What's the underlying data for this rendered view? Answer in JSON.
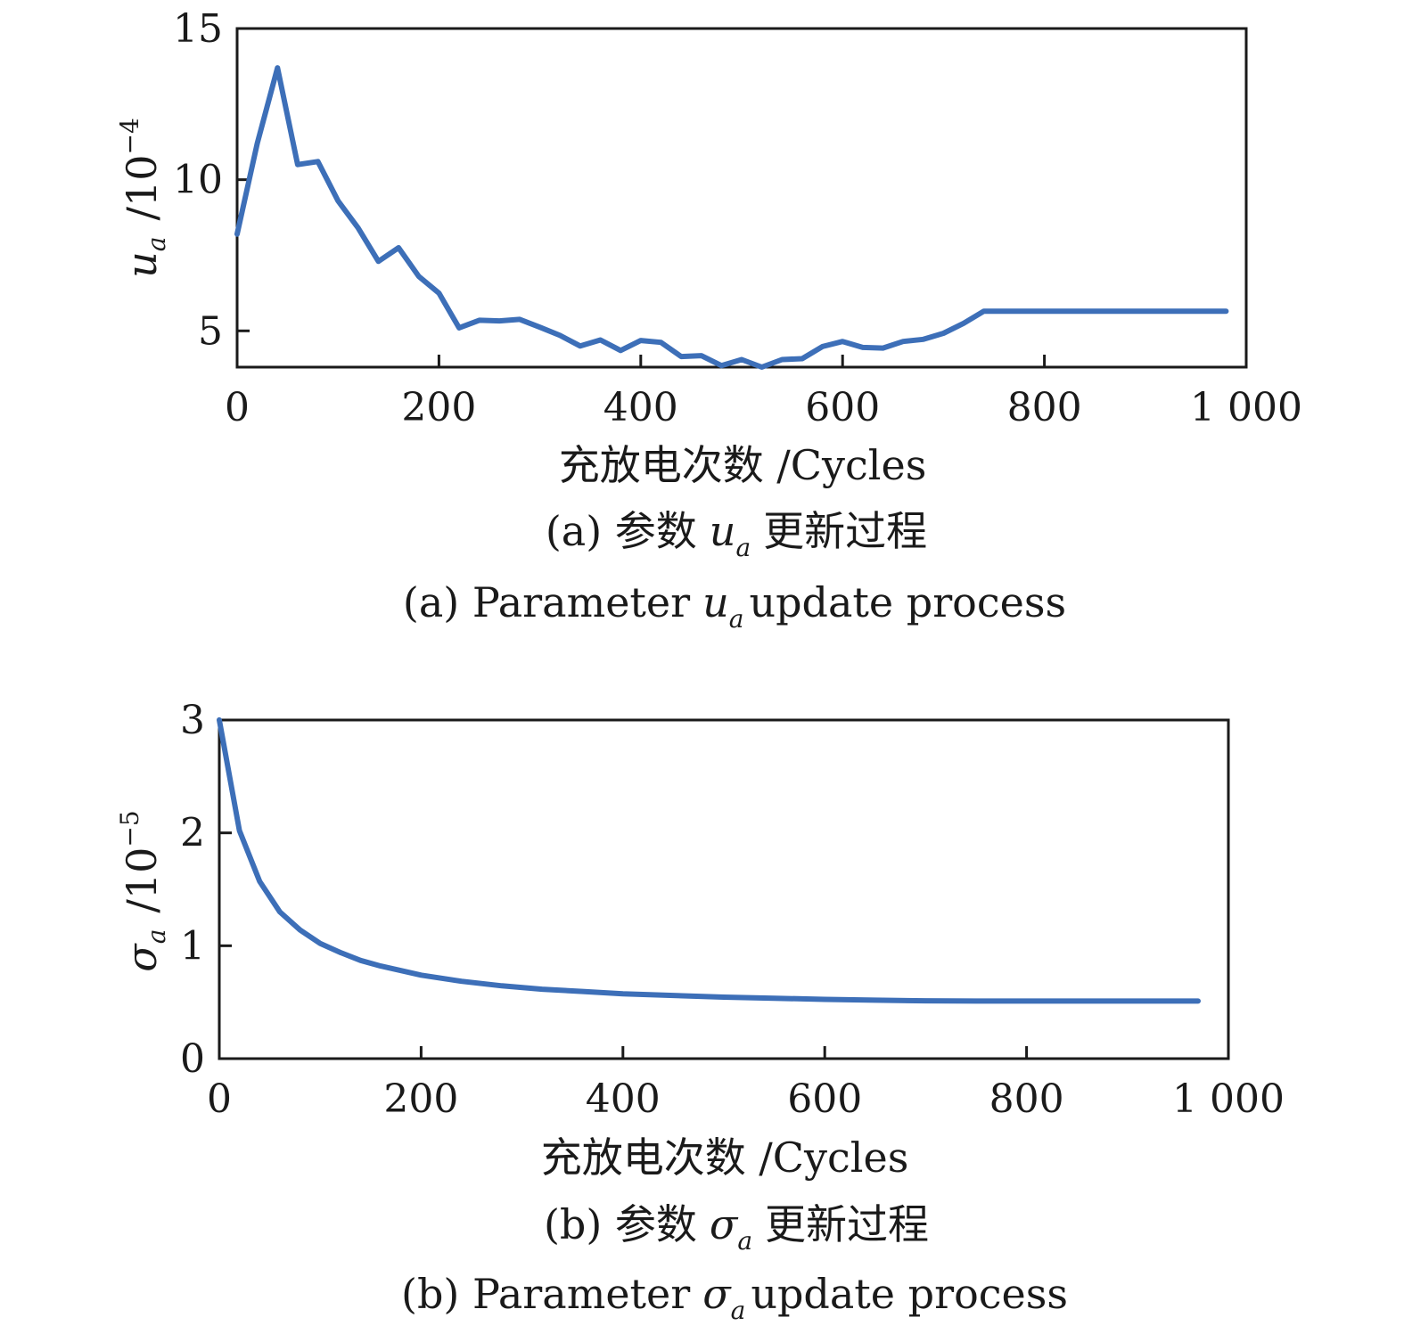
{
  "chart_data": [
    {
      "type": "line",
      "xlabel": "充放电次数 /Cycles",
      "ylabel_symbol": "u",
      "ylabel_sub": "a",
      "ylabel_unit": "/10",
      "ylabel_exp": "−4",
      "caption_cn_prefix": "(a) 参数",
      "caption_cn_symbol": "u",
      "caption_cn_sub": "a",
      "caption_cn_suffix": "更新过程",
      "caption_en_prefix": "(a) Parameter",
      "caption_en_symbol": "u",
      "caption_en_sub": "a",
      "caption_en_suffix": "update process",
      "xlim": [
        0,
        1000
      ],
      "ylim": [
        3.8,
        15
      ],
      "xticks": [
        0,
        200,
        400,
        600,
        800,
        1000
      ],
      "xtick_labels": [
        "0",
        "200",
        "400",
        "600",
        "800",
        "1 000"
      ],
      "yticks": [
        5,
        10,
        15
      ],
      "ytick_labels": [
        "5",
        "10",
        "15"
      ],
      "grid": false,
      "series": [
        {
          "color": "#3d6fb8",
          "x": [
            0,
            20,
            40,
            60,
            80,
            100,
            120,
            140,
            160,
            180,
            200,
            220,
            240,
            260,
            280,
            300,
            320,
            340,
            360,
            380,
            400,
            420,
            440,
            460,
            480,
            500,
            520,
            540,
            560,
            580,
            600,
            620,
            640,
            660,
            680,
            700,
            720,
            740,
            760,
            780,
            800,
            820,
            840,
            860,
            880,
            900,
            920,
            940,
            960,
            980
          ],
          "y": [
            8.2,
            11.2,
            13.7,
            10.5,
            10.6,
            9.3,
            8.4,
            7.3,
            7.75,
            6.8,
            6.25,
            5.1,
            5.35,
            5.33,
            5.38,
            5.12,
            4.85,
            4.5,
            4.7,
            4.35,
            4.68,
            4.62,
            4.15,
            4.18,
            3.85,
            4.05,
            3.8,
            4.05,
            4.08,
            4.48,
            4.65,
            4.45,
            4.43,
            4.65,
            4.72,
            4.92,
            5.25,
            5.65,
            5.65,
            5.65,
            5.65,
            5.65,
            5.65,
            5.65,
            5.65,
            5.65,
            5.65,
            5.65,
            5.65,
            5.65
          ]
        }
      ]
    },
    {
      "type": "line",
      "xlabel": "充放电次数 /Cycles",
      "ylabel_symbol": "σ",
      "ylabel_sub": "a",
      "ylabel_unit": "/10",
      "ylabel_exp": "−5",
      "caption_cn_prefix": "(b) 参数",
      "caption_cn_symbol": "σ",
      "caption_cn_sub": "a",
      "caption_cn_suffix": "更新过程",
      "caption_en_prefix": "(b) Parameter",
      "caption_en_symbol": "σ",
      "caption_en_sub": "a",
      "caption_en_suffix": "update process",
      "xlim": [
        0,
        1000
      ],
      "ylim": [
        0,
        3
      ],
      "xticks": [
        0,
        200,
        400,
        600,
        800,
        1000
      ],
      "xtick_labels": [
        "0",
        "200",
        "400",
        "600",
        "800",
        "1 000"
      ],
      "yticks": [
        0,
        1,
        2,
        3
      ],
      "ytick_labels": [
        "0",
        "1",
        "2",
        "3"
      ],
      "grid": false,
      "series": [
        {
          "color": "#3d6fb8",
          "x": [
            0,
            20,
            40,
            60,
            80,
            100,
            120,
            140,
            160,
            180,
            200,
            240,
            280,
            320,
            360,
            400,
            450,
            500,
            550,
            600,
            650,
            700,
            750,
            800,
            850,
            900,
            970
          ],
          "y": [
            3.0,
            2.02,
            1.57,
            1.3,
            1.14,
            1.02,
            0.94,
            0.87,
            0.82,
            0.78,
            0.74,
            0.685,
            0.645,
            0.615,
            0.595,
            0.575,
            0.56,
            0.545,
            0.535,
            0.525,
            0.518,
            0.512,
            0.51,
            0.51,
            0.51,
            0.51,
            0.51
          ]
        }
      ]
    }
  ]
}
